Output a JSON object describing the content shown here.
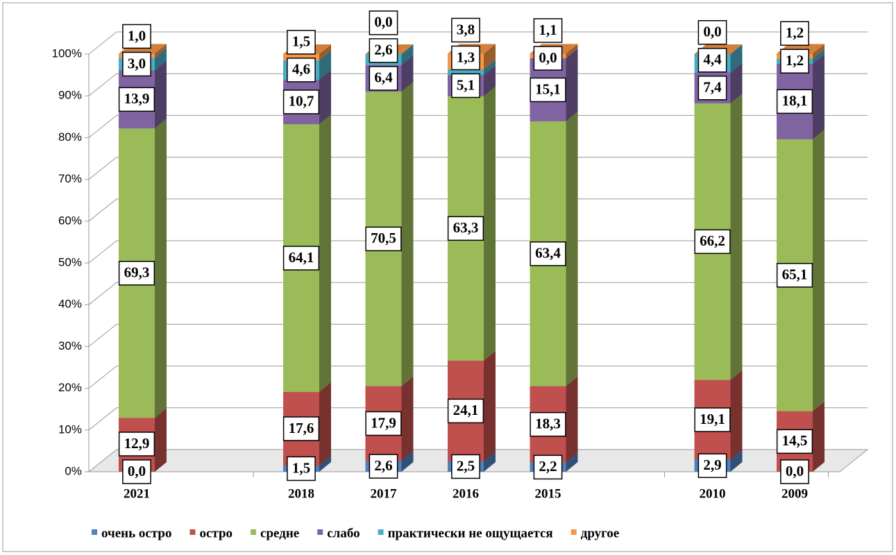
{
  "chart_data": {
    "type": "bar3d-stacked",
    "categories": [
      "2021",
      null,
      "2018",
      "2017",
      "2016",
      "2015",
      null,
      "2010",
      "2009"
    ],
    "series": [
      {
        "name": "очень остро",
        "color": "#4f81bd",
        "values": [
          0.0,
          null,
          1.5,
          2.6,
          2.5,
          2.2,
          null,
          2.9,
          0.0
        ],
        "value_labels": [
          "0,0",
          null,
          "1,5",
          "2,6",
          "2,5",
          "2,2",
          null,
          "2,9",
          "0,0"
        ]
      },
      {
        "name": "остро",
        "color": "#c0504d",
        "values": [
          12.9,
          null,
          17.6,
          17.9,
          24.1,
          18.3,
          null,
          19.1,
          14.5
        ],
        "value_labels": [
          "12,9",
          null,
          "17,6",
          "17,9",
          "24,1",
          "18,3",
          null,
          "19,1",
          "14,5"
        ]
      },
      {
        "name": "средне",
        "color": "#9bbb59",
        "values": [
          69.3,
          null,
          64.1,
          70.5,
          63.3,
          63.4,
          null,
          66.2,
          65.1
        ],
        "value_labels": [
          "69,3",
          null,
          "64,1",
          "70,5",
          "63,3",
          "63,4",
          null,
          "66,2",
          "65,1"
        ]
      },
      {
        "name": "слабо",
        "color": "#8064a2",
        "values": [
          13.9,
          null,
          10.7,
          6.4,
          5.1,
          15.1,
          null,
          7.4,
          18.1
        ],
        "value_labels": [
          "13,9",
          null,
          "10,7",
          "6,4",
          "5,1",
          "15,1",
          null,
          "7,4",
          "18,1"
        ]
      },
      {
        "name": "практически не ощущается",
        "color": "#4bacc6",
        "values": [
          3.0,
          null,
          4.6,
          2.6,
          1.3,
          0.0,
          null,
          4.4,
          1.2
        ],
        "value_labels": [
          "3,0",
          null,
          "4,6",
          "2,6",
          "1,3",
          "0,0",
          null,
          "4,4",
          "1,2"
        ]
      },
      {
        "name": "другое",
        "color": "#f79646",
        "values": [
          1.0,
          null,
          1.5,
          0.0,
          3.8,
          1.1,
          null,
          0.0,
          1.2
        ],
        "value_labels": [
          "1,0",
          null,
          "1,5",
          "0,0",
          "3,8",
          "1,1",
          null,
          "0,0",
          "1,2"
        ]
      }
    ],
    "ylim": [
      0,
      100
    ],
    "yticks": [
      {
        "value": 0,
        "label": "0%"
      },
      {
        "value": 10,
        "label": "10%"
      },
      {
        "value": 20,
        "label": "20%"
      },
      {
        "value": 30,
        "label": "30%"
      },
      {
        "value": 40,
        "label": "40%"
      },
      {
        "value": 50,
        "label": "50%"
      },
      {
        "value": 60,
        "label": "60%"
      },
      {
        "value": 70,
        "label": "70%"
      },
      {
        "value": 80,
        "label": "80%"
      },
      {
        "value": 90,
        "label": "90%"
      },
      {
        "value": 100,
        "label": "100%"
      }
    ],
    "grid": true,
    "legend": "bottom"
  }
}
